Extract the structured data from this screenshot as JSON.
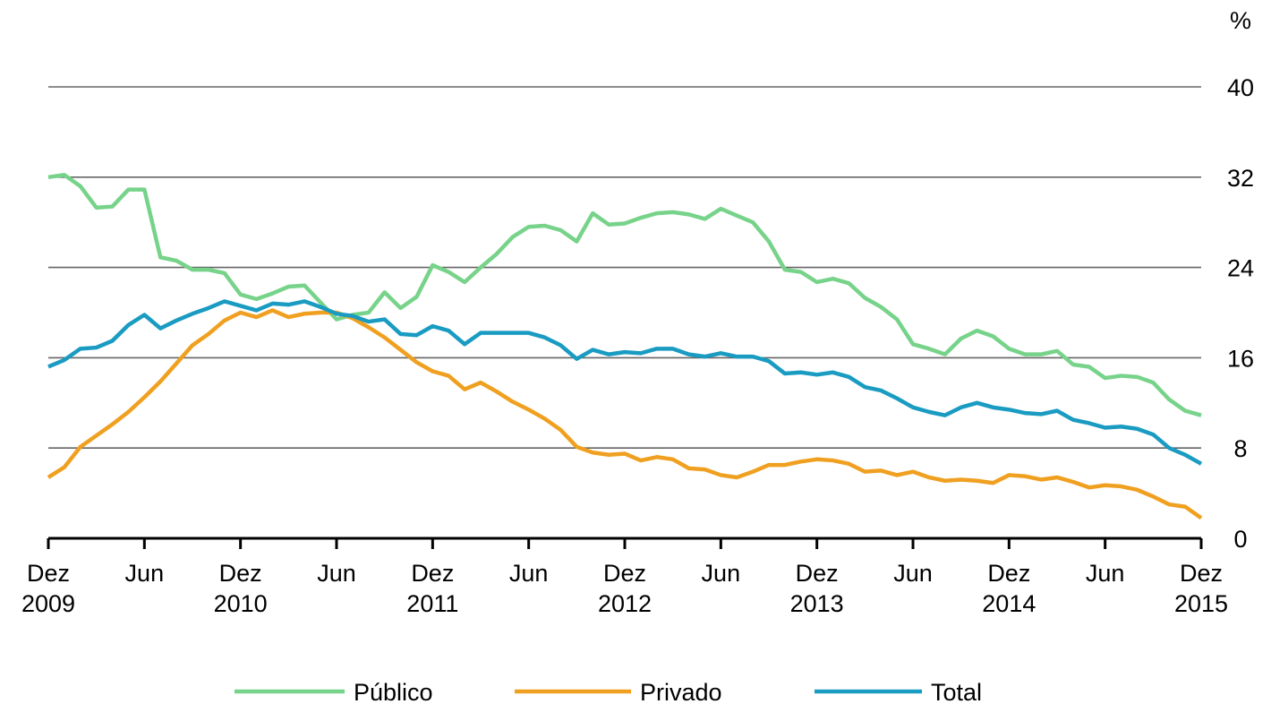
{
  "chart_data": {
    "type": "line",
    "y_label": "%",
    "categories": [
      "Dez 2009",
      null,
      null,
      null,
      null,
      null,
      "Jun",
      null,
      null,
      null,
      null,
      null,
      "Dez 2010",
      null,
      null,
      null,
      null,
      null,
      "Jun",
      null,
      null,
      null,
      null,
      null,
      "Dez 2011",
      null,
      null,
      null,
      null,
      null,
      "Jun",
      null,
      null,
      null,
      null,
      null,
      "Dez 2012",
      null,
      null,
      null,
      null,
      null,
      "Jun",
      null,
      null,
      null,
      null,
      null,
      "Dez 2013",
      null,
      null,
      null,
      null,
      null,
      "Jun",
      null,
      null,
      null,
      null,
      null,
      "Dez 2014",
      null,
      null,
      null,
      null,
      null,
      "Jun",
      null,
      null,
      null,
      null,
      null,
      "Dez 2015"
    ],
    "series": [
      {
        "name": "Público",
        "color": "#77d38a",
        "values": [
          32.0,
          32.2,
          31.2,
          29.3,
          29.4,
          30.9,
          30.9,
          24.9,
          24.6,
          23.8,
          23.8,
          23.5,
          21.6,
          21.2,
          21.7,
          22.3,
          22.4,
          20.9,
          19.4,
          19.8,
          20.0,
          21.8,
          20.4,
          21.4,
          24.2,
          23.6,
          22.7,
          24.0,
          25.2,
          26.7,
          27.6,
          27.7,
          27.3,
          26.3,
          28.8,
          27.8,
          27.9,
          28.4,
          28.8,
          28.9,
          28.7,
          28.3,
          29.2,
          28.6,
          28.0,
          26.3,
          23.8,
          23.6,
          22.7,
          23.0,
          22.6,
          21.3,
          20.5,
          19.4,
          17.2,
          16.8,
          16.3,
          17.7,
          18.4,
          17.9,
          16.8,
          16.3,
          16.3,
          16.6,
          15.4,
          15.2,
          14.2,
          14.4,
          14.3,
          13.8,
          12.3,
          11.3,
          10.9
        ]
      },
      {
        "name": "Privado",
        "color": "#f0a020",
        "values": [
          5.4,
          6.3,
          8.1,
          9.1,
          10.1,
          11.2,
          12.5,
          13.9,
          15.5,
          17.1,
          18.1,
          19.3,
          20.0,
          19.6,
          20.2,
          19.6,
          19.9,
          20.0,
          20.0,
          19.5,
          18.7,
          17.8,
          16.7,
          15.6,
          14.8,
          14.4,
          13.2,
          13.8,
          13.0,
          12.1,
          11.4,
          10.6,
          9.6,
          8.1,
          7.6,
          7.4,
          7.5,
          6.9,
          7.2,
          7.0,
          6.2,
          6.1,
          5.6,
          5.4,
          5.9,
          6.5,
          6.5,
          6.8,
          7.0,
          6.9,
          6.6,
          5.9,
          6.0,
          5.6,
          5.9,
          5.4,
          5.1,
          5.2,
          5.1,
          4.9,
          5.6,
          5.5,
          5.2,
          5.4,
          5.0,
          4.5,
          4.7,
          4.6,
          4.3,
          3.7,
          3.0,
          2.8,
          1.8
        ]
      },
      {
        "name": "Total",
        "color": "#1a9bc2",
        "values": [
          15.2,
          15.8,
          16.8,
          16.9,
          17.5,
          18.9,
          19.8,
          18.6,
          19.3,
          19.9,
          20.4,
          21.0,
          20.6,
          20.2,
          20.8,
          20.7,
          21.0,
          20.5,
          19.9,
          19.7,
          19.2,
          19.4,
          18.1,
          18.0,
          18.8,
          18.4,
          17.2,
          18.2,
          18.2,
          18.2,
          18.2,
          17.8,
          17.1,
          15.9,
          16.7,
          16.3,
          16.5,
          16.4,
          16.8,
          16.8,
          16.3,
          16.1,
          16.4,
          16.1,
          16.1,
          15.7,
          14.6,
          14.7,
          14.5,
          14.7,
          14.3,
          13.4,
          13.1,
          12.4,
          11.6,
          11.2,
          10.9,
          11.6,
          12.0,
          11.6,
          11.4,
          11.1,
          11.0,
          11.3,
          10.5,
          10.2,
          9.8,
          9.9,
          9.7,
          9.2,
          8.0,
          7.4,
          6.6
        ]
      }
    ],
    "ylim": [
      0,
      40
    ],
    "yticks": [
      0,
      8,
      16,
      24,
      32,
      40
    ],
    "grid": true,
    "legend": "bottom"
  }
}
